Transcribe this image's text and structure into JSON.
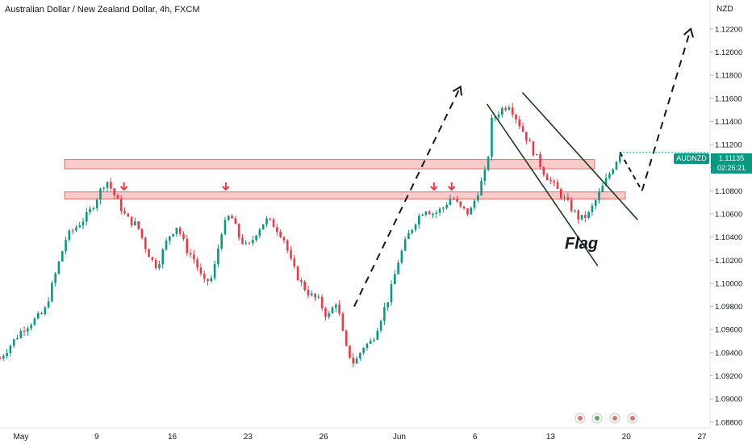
{
  "header": {
    "title": "Australian Dollar / New Zealand Dollar, 4h, FXCM",
    "currency": "NZD"
  },
  "symbol_tag": "AUDNZD",
  "last_price": "1.11135",
  "countdown": "02:26:21",
  "annotation": "Flag",
  "colors": {
    "up": "#089981",
    "down": "#f23645",
    "zone_fill": "#f7b6b6",
    "zone_stroke": "#e04a4a",
    "price_tag": "#089981"
  },
  "chart_data": {
    "type": "candlestick",
    "instrument": "AUDNZD",
    "timeframe": "4h",
    "y_axis": {
      "ticks": [
        "1.12200",
        "1.12000",
        "1.11800",
        "1.11600",
        "1.11400",
        "1.11200",
        "1.11000",
        "1.10800",
        "1.10600",
        "1.10400",
        "1.10200",
        "1.10000",
        "1.09800",
        "1.09600",
        "1.09400",
        "1.09200",
        "1.09000",
        "1.08800"
      ],
      "range": [
        1.0875,
        1.1245
      ]
    },
    "x_axis": {
      "labels": [
        "May",
        "9",
        "16",
        "23",
        "26",
        "Jun",
        "6",
        "13",
        "20",
        "27"
      ]
    },
    "close_path": [
      [
        0,
        1.0935
      ],
      [
        5,
        1.096
      ],
      [
        10,
        1.0975
      ],
      [
        15,
        1.104
      ],
      [
        20,
        1.106
      ],
      [
        24,
        1.109
      ],
      [
        26,
        1.1075
      ],
      [
        28,
        1.106
      ],
      [
        29,
        1.1055
      ],
      [
        31,
        1.105
      ],
      [
        33,
        1.103
      ],
      [
        35,
        1.1015
      ],
      [
        36,
        1.102
      ],
      [
        38,
        1.104
      ],
      [
        40,
        1.105
      ],
      [
        42,
        1.103
      ],
      [
        44,
        1.102
      ],
      [
        46,
        1.1
      ],
      [
        48,
        1.1005
      ],
      [
        50,
        1.1045
      ],
      [
        52,
        1.106
      ],
      [
        54,
        1.104
      ],
      [
        56,
        1.103
      ],
      [
        58,
        1.1045
      ],
      [
        60,
        1.1055
      ],
      [
        62,
        1.105
      ],
      [
        64,
        1.104
      ],
      [
        66,
        1.1015
      ],
      [
        68,
        1.1
      ],
      [
        70,
        1.099
      ],
      [
        72,
        1.0985
      ],
      [
        74,
        1.097
      ],
      [
        76,
        1.0985
      ],
      [
        78,
        1.0945
      ],
      [
        80,
        1.093
      ],
      [
        82,
        1.0945
      ],
      [
        84,
        1.095
      ],
      [
        86,
        1.097
      ],
      [
        88,
        1.099
      ],
      [
        90,
        1.102
      ],
      [
        92,
        1.104
      ],
      [
        94,
        1.1055
      ],
      [
        96,
        1.1065
      ],
      [
        98,
        1.106
      ],
      [
        100,
        1.1065
      ],
      [
        102,
        1.1075
      ],
      [
        104,
        1.1065
      ],
      [
        106,
        1.106
      ],
      [
        108,
        1.108
      ],
      [
        110,
        1.11
      ],
      [
        111,
        1.114
      ],
      [
        113,
        1.115
      ],
      [
        115,
        1.1155
      ],
      [
        117,
        1.114
      ],
      [
        119,
        1.1125
      ],
      [
        121,
        1.111
      ],
      [
        123,
        1.1095
      ],
      [
        125,
        1.1085
      ],
      [
        127,
        1.1075
      ],
      [
        129,
        1.1065
      ],
      [
        131,
        1.1055
      ],
      [
        133,
        1.106
      ],
      [
        135,
        1.1075
      ],
      [
        137,
        1.109
      ],
      [
        139,
        1.1105
      ],
      [
        140,
        1.11135
      ]
    ],
    "zones": [
      {
        "from": 1.1099,
        "to": 1.1107
      },
      {
        "from": 1.1073,
        "to": 1.1079
      }
    ],
    "projections": [
      {
        "from": [
          80,
          1.098
        ],
        "to": [
          104,
          1.117
        ]
      },
      {
        "from": [
          145,
          1.108
        ],
        "to": [
          156,
          1.122
        ]
      }
    ],
    "channel": [
      {
        "from": [
          110,
          1.1155
        ],
        "to": [
          135,
          1.1015
        ]
      },
      {
        "from": [
          118,
          1.1165
        ],
        "to": [
          144,
          1.1055
        ]
      }
    ],
    "signal_arrows": [
      {
        "x": 28,
        "y": 1.1081
      },
      {
        "x": 51,
        "y": 1.1081
      },
      {
        "x": 98,
        "y": 1.1081
      },
      {
        "x": 102,
        "y": 1.1081
      }
    ]
  }
}
